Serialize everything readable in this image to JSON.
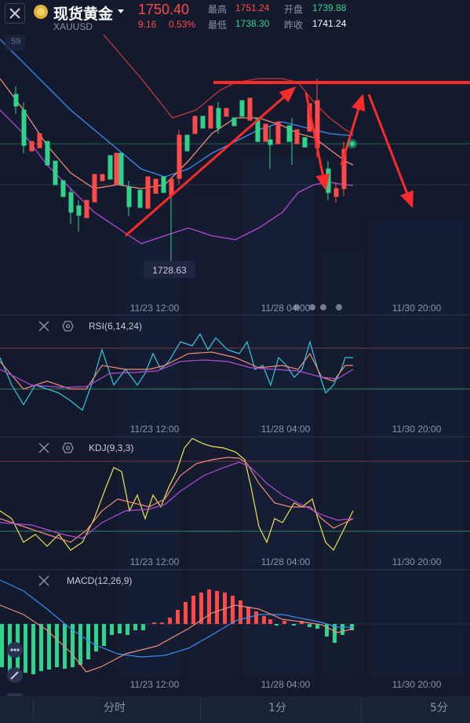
{
  "header": {
    "title": "现货黄金",
    "code": "XAUUSD",
    "price": "1750.40",
    "change": "9.16",
    "change_pct": "0.53%",
    "high_label": "最高",
    "high": "1751.24",
    "open_label": "开盘",
    "open": "1739.88",
    "low_label": "最低",
    "low": "1738.30",
    "prev_close_label": "昨收",
    "prev_close": "1741.24"
  },
  "main_chart": {
    "partial_label": "59",
    "low_marker": "1728.63",
    "x_ticks": [
      "11/23 12:00",
      "11/28 04:00",
      "11/30 20:00"
    ]
  },
  "indicators": {
    "rsi": {
      "label": "RSI(6,14,24)",
      "x_ticks": [
        "11/23 12:00",
        "11/28 04:00",
        "11/30 20:00"
      ]
    },
    "kdj": {
      "label": "KDJ(9,3,3)",
      "x_ticks": [
        "11/23 12:00",
        "11/28 04:00",
        "11/30 20:00"
      ]
    },
    "macd": {
      "label": "MACD(12,26,9)",
      "x_ticks": [
        "11/23 12:00",
        "11/28 04:00",
        "11/30 20:00"
      ]
    }
  },
  "bottom_tabs": [
    "分时",
    "1分",
    "5分"
  ],
  "colors": {
    "up": "#ff4a4a",
    "down": "#2fd38a",
    "background": "#131a2e",
    "annotation": "#ff2b2b"
  }
}
